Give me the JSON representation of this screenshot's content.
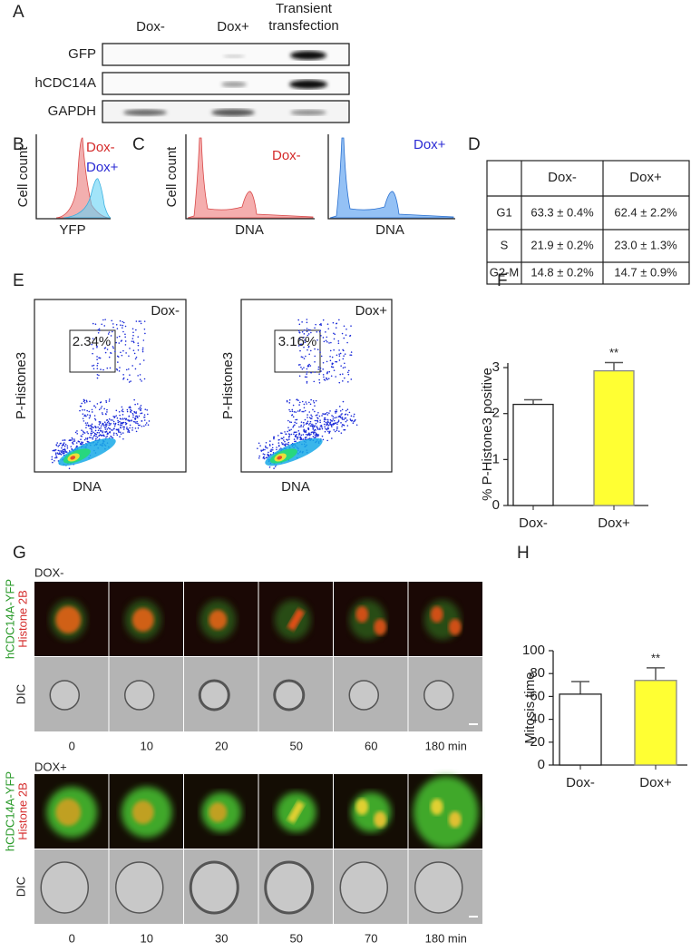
{
  "panel_labels": [
    "A",
    "B",
    "C",
    "D",
    "E",
    "F",
    "G",
    "H"
  ],
  "blot": {
    "columns": [
      "Dox-",
      "Dox+",
      "Transient transfection"
    ],
    "rows": [
      "GFP",
      "hCDC14A",
      "GAPDH"
    ]
  },
  "yfp_histogram": {
    "ylabel": "Cell count",
    "xlabel": "YFP",
    "legend": [
      "Dox-",
      "Dox+"
    ]
  },
  "dna_histograms": {
    "ylabel": "Cell count",
    "xlabel": "DNA",
    "conditions": [
      "Dox-",
      "Dox+"
    ]
  },
  "cell_cycle_table": {
    "header": [
      "Dox-",
      "Dox+"
    ],
    "rows": [
      [
        "G1",
        "63.3 ± 0.4%",
        "62.4 ± 2.2%"
      ],
      [
        "S",
        "21.9 ± 0.2%",
        "23.0 ± 1.3%"
      ],
      [
        "G2-M",
        "14.8 ± 0.2%",
        "14.7 ± 0.9%"
      ]
    ]
  },
  "dot_plots": {
    "ylabel": "P-Histone3",
    "xlabel": "DNA",
    "panels": [
      {
        "condition": "Dox-",
        "gate": "2.34%"
      },
      {
        "condition": "Dox+",
        "gate": "3.16%"
      }
    ]
  },
  "timelapse": {
    "channel_labels": [
      "hCDC14A-YFP",
      "Histone 2B"
    ],
    "dic_label": "DIC",
    "rows": [
      {
        "condition": "DOX-",
        "times": [
          "0",
          "10",
          "20",
          "50",
          "60",
          "180 min"
        ]
      },
      {
        "condition": "DOX+",
        "times": [
          "0",
          "10",
          "30",
          "50",
          "70",
          "180 min"
        ]
      }
    ]
  },
  "chart_data": [
    {
      "type": "bar",
      "ylabel": "% P-Histone3 positive",
      "categories": [
        "Dox-",
        "Dox+"
      ],
      "values": [
        2.2,
        2.93
      ],
      "errors": [
        0.1,
        0.18
      ],
      "colors": [
        "#ffffff",
        "#ffff33"
      ],
      "significance": [
        null,
        "**"
      ],
      "ylim": [
        0,
        3.1
      ],
      "yticks": [
        0,
        1,
        2,
        3
      ]
    },
    {
      "type": "bar",
      "ylabel": "Mitosis time",
      "categories": [
        "Dox-",
        "Dox+"
      ],
      "values": [
        62,
        74
      ],
      "errors": [
        11,
        11
      ],
      "colors": [
        "#ffffff",
        "#ffff33"
      ],
      "significance": [
        null,
        "**"
      ],
      "ylim": [
        0,
        100
      ],
      "yticks": [
        0,
        20,
        40,
        60,
        80,
        100
      ]
    }
  ]
}
